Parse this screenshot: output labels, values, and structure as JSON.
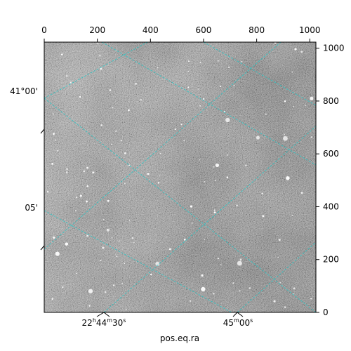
{
  "chart_data": {
    "type": "image",
    "image_style": "grayscale astronomical sky image",
    "pixel_axes": {
      "x": {
        "range": [
          0,
          1023
        ],
        "ticks": [
          0,
          200,
          400,
          600,
          800,
          1000
        ],
        "tick_labels": [
          "0",
          "200",
          "400",
          "600",
          "800",
          "1000"
        ],
        "position": "top"
      },
      "y": {
        "range": [
          0,
          1023
        ],
        "ticks": [
          0,
          200,
          400,
          600,
          800,
          1000
        ],
        "tick_labels": [
          "0",
          "200",
          "400",
          "600",
          "800",
          "1000"
        ],
        "position": "right"
      }
    },
    "world_axes": {
      "ra": {
        "tick_labels": [
          {
            "h": "22",
            "m": "44",
            "s": "30"
          },
          {
            "h": "",
            "m": "45",
            "s": "00"
          }
        ],
        "position": "bottom"
      },
      "dec": {
        "tick_labels": [
          "41°00'",
          "05'"
        ],
        "position": "left"
      }
    },
    "xlabel": "pos.eq.ra",
    "grid": {
      "on": true,
      "color": "#2ec4c4",
      "style": "dashed"
    }
  }
}
